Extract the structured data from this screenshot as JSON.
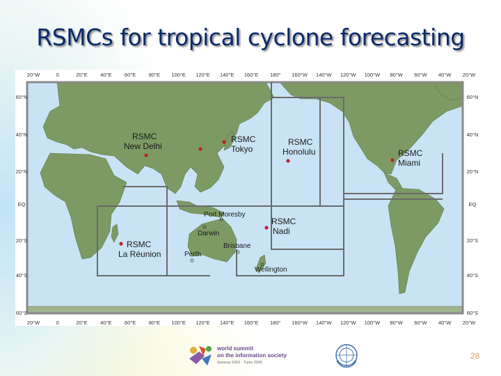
{
  "slide": {
    "title": "RSMCs for tropical cyclone forecasting",
    "page_number": "28"
  },
  "map": {
    "ocean_color": "#c9e3f5",
    "land_color": "#7d9a64",
    "border_color": "#6a6a6a",
    "lon_labels": [
      "20°W",
      "0",
      "20°E",
      "40°E",
      "60°E",
      "80°E",
      "100°E",
      "120°E",
      "140°E",
      "160°E",
      "180°",
      "160°W",
      "140°W",
      "120°W",
      "100°W",
      "80°W",
      "60°W",
      "40°W",
      "20°W"
    ],
    "lat_labels_left": [
      "60°N",
      "40°N",
      "20°N",
      "EQ",
      "20°S",
      "40°S",
      "60°S"
    ],
    "lat_labels_right": [
      "60°N",
      "40°N",
      "20°N",
      "EQ",
      "20°S",
      "40°S",
      "60°S"
    ],
    "centers": [
      {
        "line1": "RSMC",
        "line2": "New Delhi"
      },
      {
        "line1": "RSMC",
        "line2": "Tokyo"
      },
      {
        "line1": "RSMC",
        "line2": "Honolulu"
      },
      {
        "line1": "RSMC",
        "line2": "Miami"
      },
      {
        "line1": "RSMC",
        "line2": "Nadi"
      },
      {
        "line1": "RSMC",
        "line2": "La Réunion"
      }
    ],
    "cities": [
      "Port Moresby",
      "Darwin",
      "Brisbane",
      "Perth",
      "Wellington"
    ],
    "marker_color": "#c0202a"
  },
  "footer": {
    "wsis_line1": "world summit",
    "wsis_line2": "on the information society",
    "wsis_line3": "Geneva 2003 · Tunis 2005"
  }
}
